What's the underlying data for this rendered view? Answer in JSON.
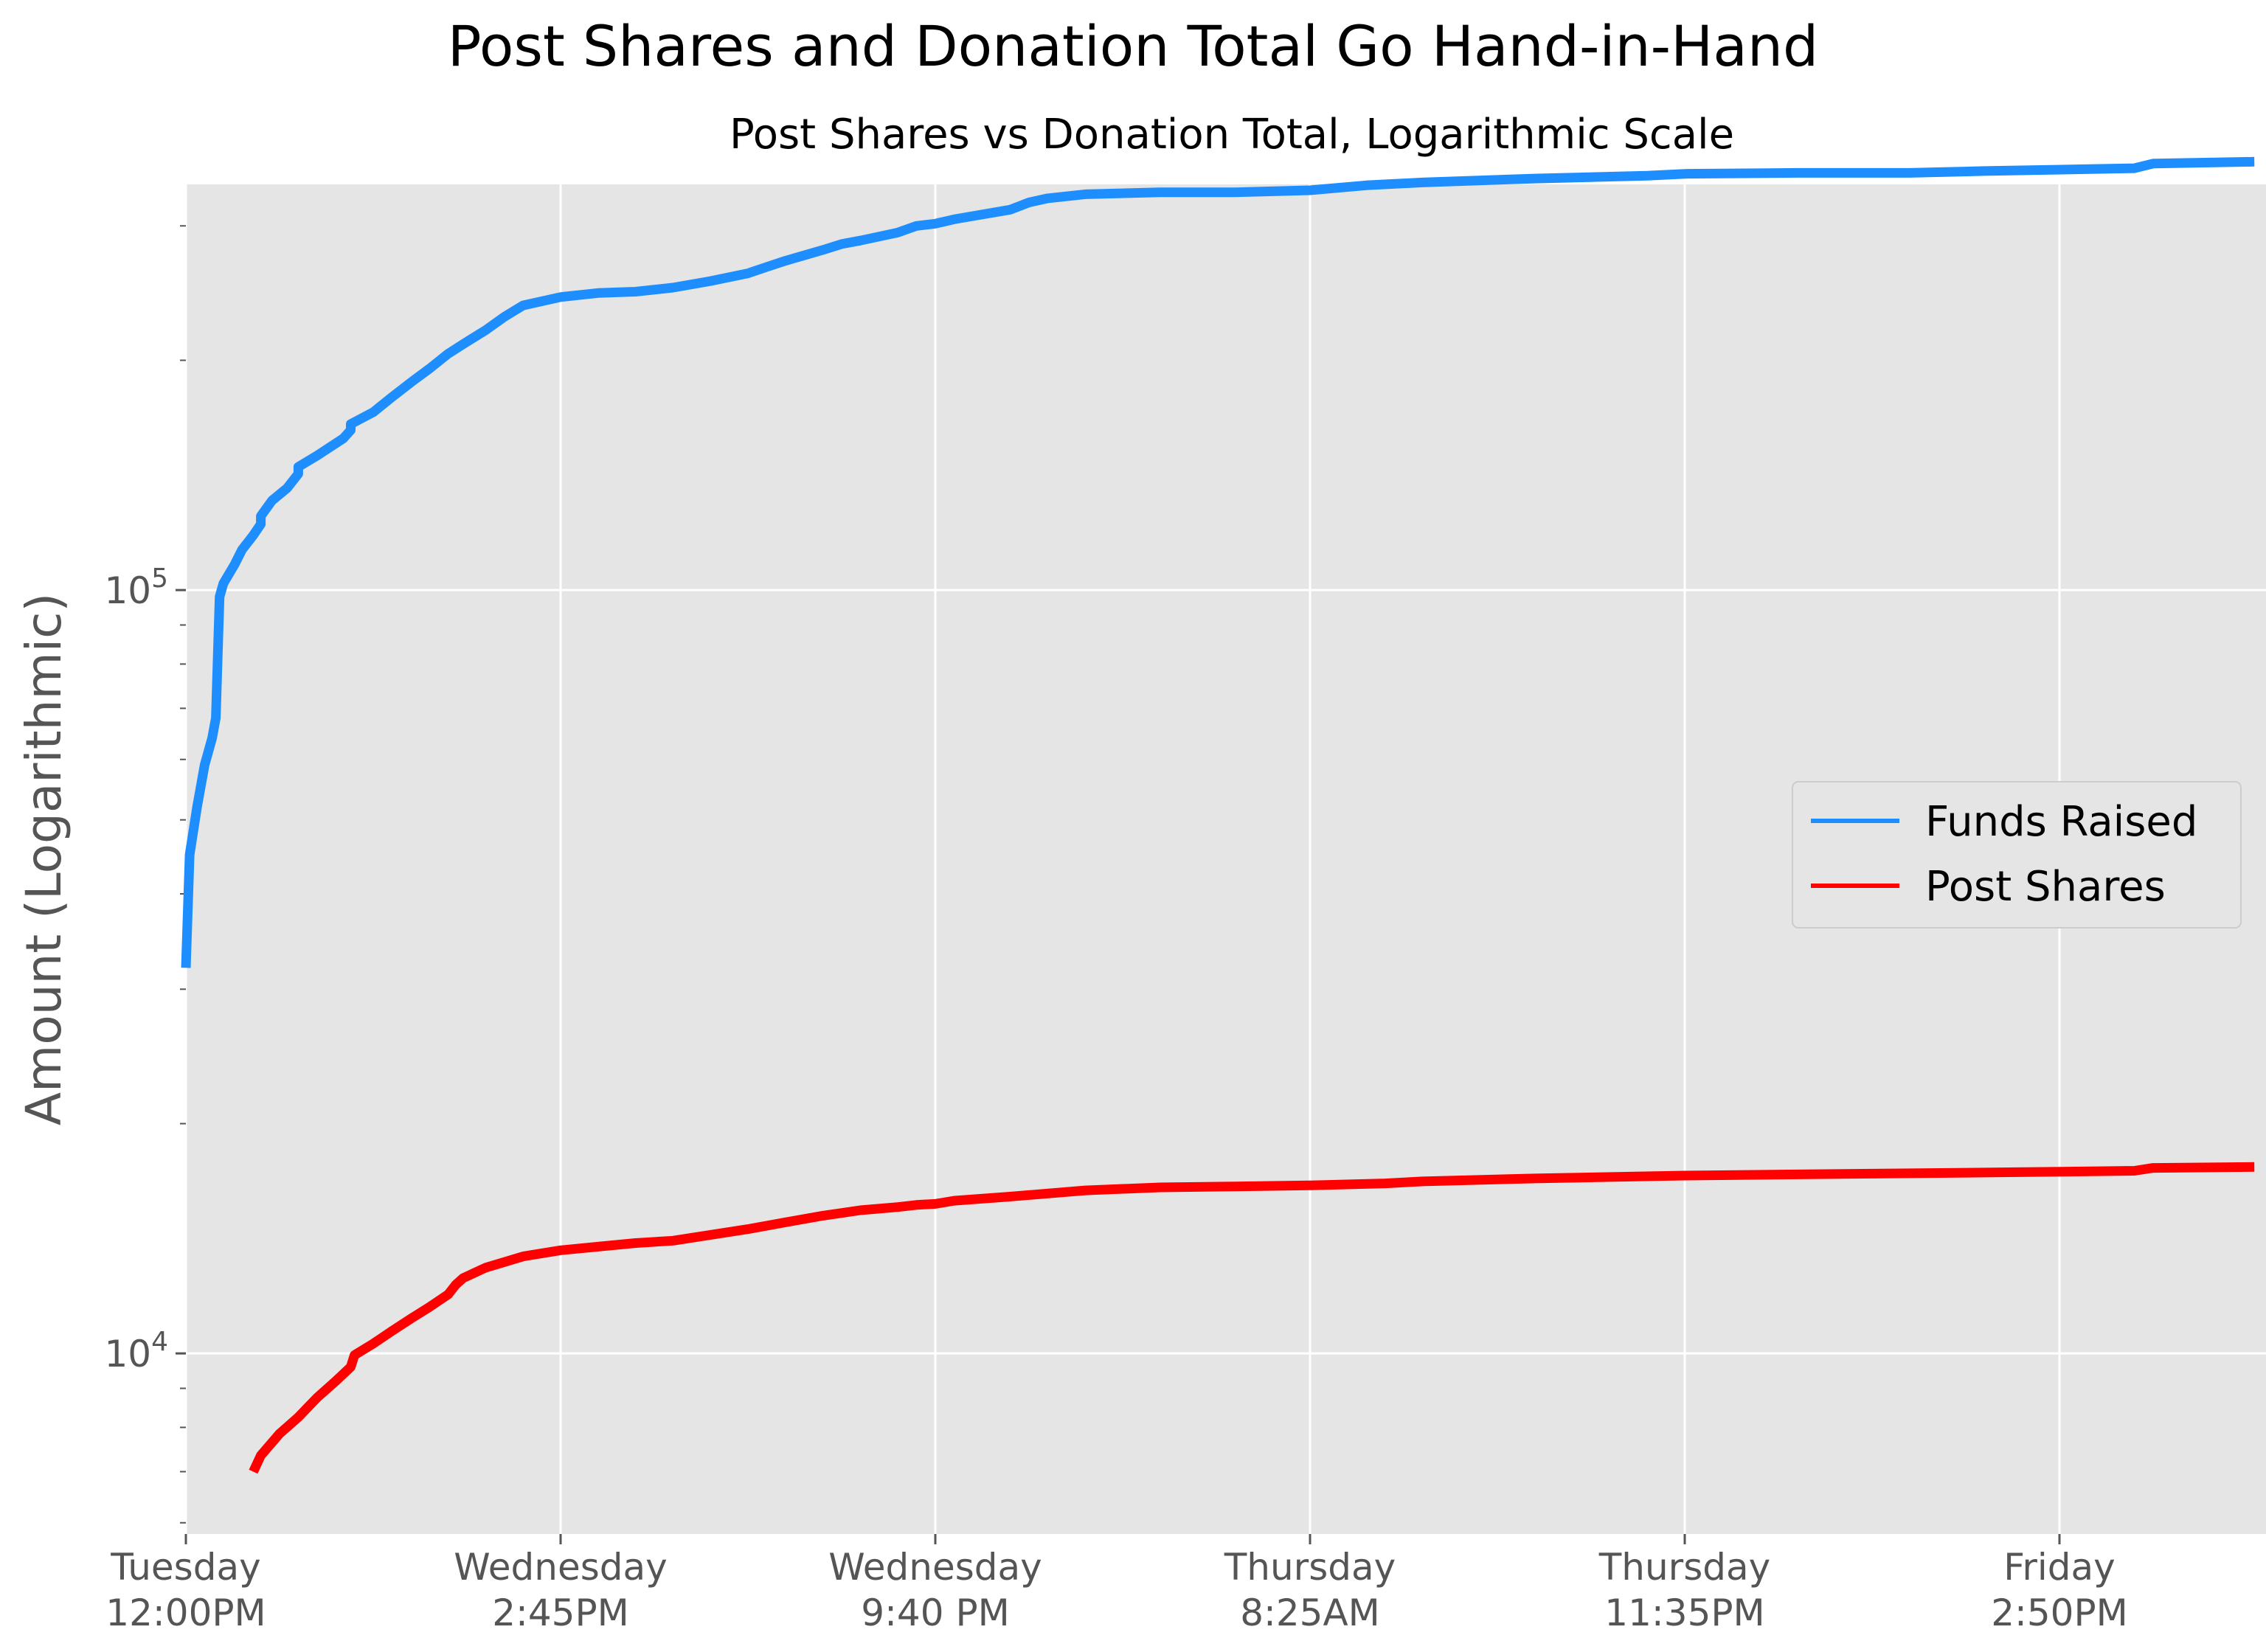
{
  "title": "Post Shares and Donation Total Go Hand-in-Hand",
  "subtitle": "Post Shares vs Donation Total, Logarithmic Scale",
  "chart_data": {
    "type": "line",
    "title": "Post Shares and Donation Total Go Hand-in-Hand",
    "subtitle": "Post Shares vs Donation Total, Logarithmic Scale",
    "xlabel": "",
    "ylabel": "Amount (Logarithmic)",
    "yscale": "log",
    "ylim": [
      5800,
      340000
    ],
    "grid": true,
    "background": "#e5e5e5",
    "legend_position": "center-right",
    "x_ticks": [
      {
        "line1": "Tuesday",
        "line2": "12:00PM",
        "value": 0
      },
      {
        "line1": "Wednesday",
        "line2": "2:45PM",
        "value": 1
      },
      {
        "line1": "Wednesday",
        "line2": "9:40 PM",
        "value": 2
      },
      {
        "line1": "Thursday",
        "line2": "8:25AM",
        "value": 3
      },
      {
        "line1": "Thursday",
        "line2": "11:35PM",
        "value": 4
      },
      {
        "line1": "Friday",
        "line2": "2:50PM",
        "value": 5
      }
    ],
    "xlim": [
      0,
      5.52
    ],
    "y_ticks": [
      {
        "base": "10",
        "exp": "4",
        "value": 10000
      },
      {
        "base": "10",
        "exp": "5",
        "value": 100000
      }
    ],
    "series": [
      {
        "name": "Funds Raised",
        "color": "#1e8eff",
        "x": [
          0,
          0.01,
          0.03,
          0.05,
          0.07,
          0.08,
          0.09,
          0.1,
          0.13,
          0.15,
          0.18,
          0.2,
          0.2,
          0.21,
          0.23,
          0.27,
          0.3,
          0.3,
          0.35,
          0.42,
          0.44,
          0.44,
          0.5,
          0.55,
          0.6,
          0.65,
          0.7,
          0.72,
          0.74,
          0.8,
          0.85,
          0.9,
          1.0,
          1.1,
          1.2,
          1.3,
          1.4,
          1.5,
          1.55,
          1.6,
          1.7,
          1.75,
          1.8,
          1.9,
          1.95,
          2.0,
          2.05,
          2.1,
          2.2,
          2.25,
          2.3,
          2.4,
          2.6,
          2.8,
          3.0,
          3.15,
          3.3,
          3.6,
          3.9,
          4.0,
          4.3,
          4.6,
          4.8,
          5.2,
          5.25,
          5.52
        ],
        "values": [
          32000,
          45000,
          52000,
          59000,
          64000,
          68000,
          98000,
          102000,
          108000,
          113000,
          118000,
          122000,
          125000,
          127000,
          131000,
          136000,
          142000,
          145000,
          150000,
          158000,
          162000,
          165000,
          171000,
          179000,
          187000,
          195000,
          204000,
          207000,
          210000,
          219000,
          228000,
          236000,
          242000,
          245000,
          246000,
          249000,
          254000,
          260000,
          265000,
          270000,
          279000,
          284000,
          287000,
          294000,
          300000,
          302000,
          306000,
          309000,
          315000,
          322000,
          326000,
          330000,
          332000,
          332000,
          334000,
          339000,
          342000,
          346000,
          349000,
          351000,
          352000,
          352000,
          354000,
          357000,
          362000,
          364000
        ]
      },
      {
        "name": "Post Shares",
        "color": "#ff0000",
        "x": [
          0.18,
          0.2,
          0.25,
          0.3,
          0.35,
          0.4,
          0.44,
          0.45,
          0.5,
          0.55,
          0.6,
          0.65,
          0.7,
          0.72,
          0.74,
          0.8,
          0.9,
          1.0,
          1.1,
          1.2,
          1.3,
          1.4,
          1.5,
          1.6,
          1.7,
          1.8,
          1.9,
          1.95,
          2.0,
          2.05,
          2.2,
          2.4,
          2.6,
          2.8,
          3.0,
          3.2,
          3.3,
          3.6,
          4.0,
          4.5,
          5.0,
          5.2,
          5.25,
          5.52
        ],
        "values": [
          7000,
          7350,
          7850,
          8250,
          8750,
          9200,
          9600,
          9950,
          10300,
          10700,
          11100,
          11500,
          11950,
          12300,
          12550,
          12950,
          13400,
          13650,
          13800,
          13950,
          14050,
          14300,
          14550,
          14850,
          15150,
          15400,
          15550,
          15650,
          15700,
          15850,
          16050,
          16350,
          16500,
          16550,
          16600,
          16700,
          16800,
          16950,
          17100,
          17200,
          17300,
          17350,
          17500,
          17550
        ]
      }
    ]
  }
}
